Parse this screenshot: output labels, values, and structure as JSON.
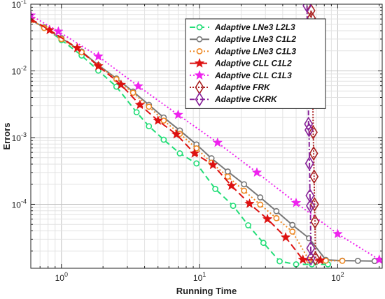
{
  "chart_data": {
    "type": "line",
    "title": "",
    "xlabel": "Running Time",
    "ylabel": "Errors",
    "xscale": "log",
    "yscale": "log",
    "xlim": [
      0.6,
      210
    ],
    "ylim": [
      1.1e-05,
      0.1
    ],
    "grid": true,
    "legend_position": "top-right",
    "x_ticks": [
      {
        "value": 1,
        "label": "10",
        "exp": "0"
      },
      {
        "value": 10,
        "label": "10",
        "exp": "1"
      },
      {
        "value": 100,
        "label": "10",
        "exp": "2"
      }
    ],
    "y_ticks": [
      {
        "value": 0.0001,
        "label": "10",
        "exp": "-4"
      },
      {
        "value": 0.001,
        "label": "10",
        "exp": "-3"
      },
      {
        "value": 0.01,
        "label": "10",
        "exp": "-2"
      },
      {
        "value": 0.1,
        "label": "10",
        "exp": "-1"
      }
    ],
    "series": [
      {
        "name": "Adaptive LNe3 L2L3",
        "color": "#22dd77",
        "dash": "8,5",
        "marker": "circle",
        "x": [
          0.6,
          0.75,
          1.0,
          1.4,
          1.85,
          2.5,
          3.5,
          4.3,
          5.5,
          7.2,
          9.5,
          13.0,
          17.5,
          22.5,
          29.0,
          38.0,
          50.0,
          65.0,
          85.0
        ],
        "y": [
          0.058,
          0.045,
          0.029,
          0.017,
          0.0101,
          0.0058,
          0.0024,
          0.00148,
          0.00093,
          0.00058,
          0.00041,
          0.00017,
          9.5e-05,
          4.85e-05,
          2.64e-05,
          1.4e-05,
          1.26e-05,
          1.26e-05,
          1.26e-05
        ]
      },
      {
        "name": "Adaptive LNe3 C1L2",
        "color": "#777777",
        "dash": "",
        "marker": "circle",
        "x": [
          0.6,
          0.75,
          1.0,
          1.4,
          1.85,
          2.5,
          3.3,
          4.3,
          5.5,
          7.2,
          9.5,
          12.2,
          16.0,
          21.0,
          27.5,
          36.0,
          47.0,
          62.0,
          82.0,
          108.0,
          140.0,
          185.0
        ],
        "y": [
          0.058,
          0.045,
          0.031,
          0.0195,
          0.0122,
          0.0077,
          0.0049,
          0.0031,
          0.002,
          0.00128,
          0.00079,
          0.00049,
          0.00031,
          0.0002,
          0.000127,
          7.9e-05,
          4.9e-05,
          3.1e-05,
          1.47e-05,
          1.43e-05,
          1.42e-05,
          1.41e-05
        ]
      },
      {
        "name": "Adaptive LNe3 C1L3",
        "color": "#ee8822",
        "dash": "2,3",
        "marker": "circle",
        "x": [
          0.6,
          0.75,
          1.0,
          1.4,
          1.85,
          2.5,
          3.3,
          4.3,
          5.5,
          7.2,
          9.5,
          12.2,
          16.0,
          21.0,
          27.5,
          36.0,
          47.0,
          62.0,
          82.0,
          108.0
        ],
        "y": [
          0.058,
          0.044,
          0.03,
          0.019,
          0.012,
          0.0075,
          0.0047,
          0.0029,
          0.0018,
          0.00114,
          0.00069,
          0.00042,
          0.00026,
          0.00016,
          9.9e-05,
          6.2e-05,
          3.9e-05,
          1.45e-05,
          1.43e-05,
          1.42e-05
        ]
      },
      {
        "name": "Adaptive CLL C1L2",
        "color": "#dd1111",
        "dash": "10,5",
        "marker": "star",
        "x": [
          0.6,
          0.82,
          1.3,
          1.85,
          2.7,
          3.7,
          5.0,
          6.8,
          9.2,
          12.5,
          17.0,
          23.0,
          31.0,
          42.0,
          56.0,
          75.0
        ],
        "y": [
          0.06,
          0.041,
          0.022,
          0.0118,
          0.0062,
          0.0031,
          0.0018,
          0.00112,
          0.00058,
          0.00039,
          0.00019,
          0.000102,
          6e-05,
          3.2e-05,
          1.48e-05,
          1.45e-05
        ]
      },
      {
        "name": "Adaptive CLL C1L3",
        "color": "#ee22ee",
        "dash": "2,3",
        "marker": "star",
        "x": [
          0.6,
          0.95,
          1.85,
          3.6,
          7.0,
          13.5,
          26.0,
          50.0,
          100.0,
          200.0
        ],
        "y": [
          0.068,
          0.039,
          0.0165,
          0.0059,
          0.0022,
          0.00084,
          0.0003,
          0.000105,
          3.6e-05,
          1.48e-05
        ]
      },
      {
        "name": "Adaptive FRK",
        "color": "#aa2222",
        "dash": "2,2",
        "marker": "diamond",
        "x": [
          64.0,
          64.5,
          65.0,
          65.5,
          66.0,
          66.5,
          67.0,
          67.5,
          68.0,
          68.5,
          69.0
        ],
        "y": [
          0.08,
          0.062,
          0.044,
          0.019,
          0.0045,
          0.0012,
          0.00058,
          0.00026,
          0.0001,
          5.5e-05,
          1.55e-05
        ]
      },
      {
        "name": "Adaptive CKRK",
        "color": "#882299",
        "dash": "7,3,2,3",
        "marker": "diamond",
        "x": [
          60.0,
          60.5,
          61.0,
          61.5,
          62.0,
          62.5,
          63.0,
          63.5,
          63.8,
          64.0
        ],
        "y": [
          0.095,
          0.022,
          0.017,
          0.0016,
          0.0013,
          0.00041,
          0.000135,
          9.5e-05,
          2.2e-05,
          1.55e-05
        ]
      }
    ]
  }
}
